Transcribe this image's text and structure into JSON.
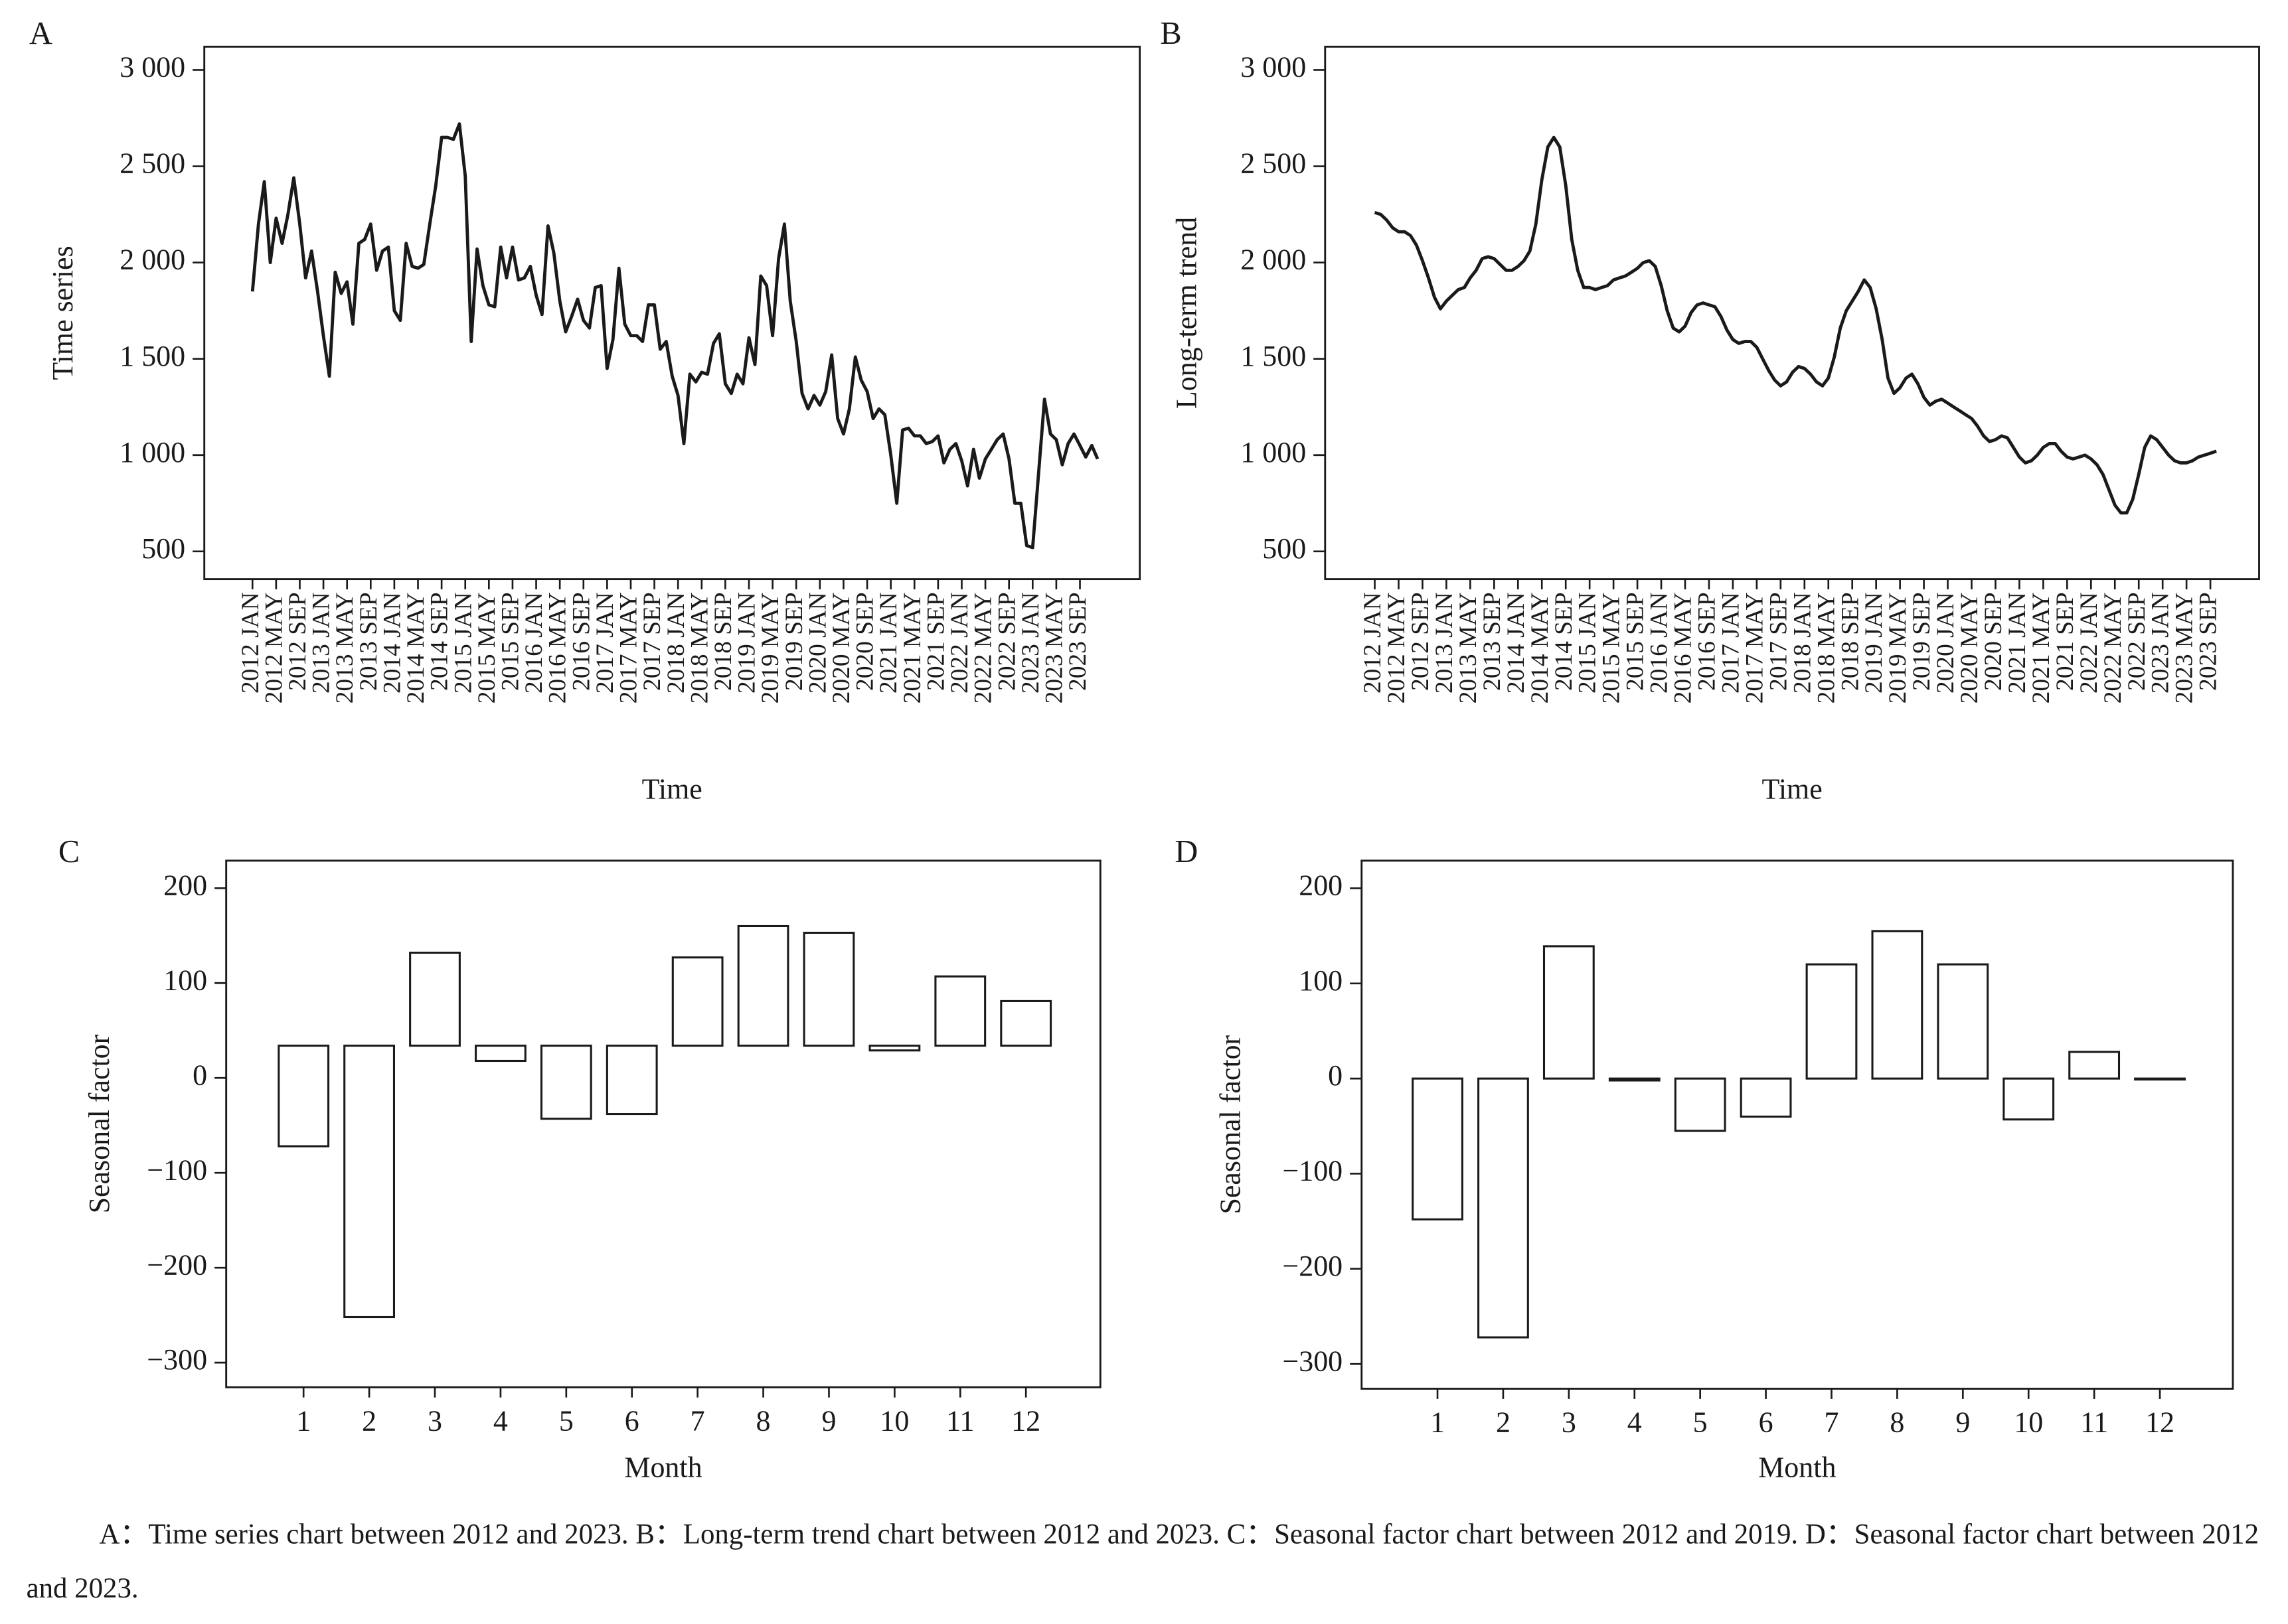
{
  "chart_data": [
    {
      "type": "line",
      "label": "A",
      "ylabel": "Time series",
      "xlabel": "Time",
      "color": "#1a1a1a",
      "categories": [
        "2012 JAN",
        null,
        null,
        null,
        "2012 MAY",
        null,
        null,
        null,
        "2012 SEP",
        null,
        null,
        null,
        "2013 JAN",
        null,
        null,
        null,
        "2013 MAY",
        null,
        null,
        null,
        "2013 SEP",
        null,
        null,
        null,
        "2014 JAN",
        null,
        null,
        null,
        "2014 MAY",
        null,
        null,
        null,
        "2014 SEP",
        null,
        null,
        null,
        "2015 JAN",
        null,
        null,
        null,
        "2015 MAY",
        null,
        null,
        null,
        "2015 SEP",
        null,
        null,
        null,
        "2016 JAN",
        null,
        null,
        null,
        "2016 MAY",
        null,
        null,
        null,
        "2016 SEP",
        null,
        null,
        null,
        "2017 JAN",
        null,
        null,
        null,
        "2017 MAY",
        null,
        null,
        null,
        "2017 SEP",
        null,
        null,
        null,
        "2018 JAN",
        null,
        null,
        null,
        "2018 MAY",
        null,
        null,
        null,
        "2018 SEP",
        null,
        null,
        null,
        "2019 JAN",
        null,
        null,
        null,
        "2019 MAY",
        null,
        null,
        null,
        "2019 SEP",
        null,
        null,
        null,
        "2020 JAN",
        null,
        null,
        null,
        "2020 MAY",
        null,
        null,
        null,
        "2020 SEP",
        null,
        null,
        null,
        "2021 JAN",
        null,
        null,
        null,
        "2021 MAY",
        null,
        null,
        null,
        "2021 SEP",
        null,
        null,
        null,
        "2022 JAN",
        null,
        null,
        null,
        "2022 MAY",
        null,
        null,
        null,
        "2022 SEP",
        null,
        null,
        null,
        "2023 JAN",
        null,
        null,
        null,
        "2023 MAY",
        null,
        null,
        null,
        "2023 SEP",
        null,
        null,
        null
      ],
      "values": [
        1850,
        2200,
        2420,
        2000,
        2230,
        2100,
        2250,
        2440,
        2200,
        1920,
        2060,
        1850,
        1620,
        1410,
        1950,
        1840,
        1900,
        1680,
        2100,
        2120,
        2200,
        1960,
        2060,
        2080,
        1750,
        1700,
        2100,
        1980,
        1970,
        1990,
        2200,
        2400,
        2650,
        2650,
        2640,
        2720,
        2450,
        1590,
        2070,
        1880,
        1780,
        1770,
        2080,
        1920,
        2080,
        1910,
        1920,
        1980,
        1830,
        1730,
        2190,
        2050,
        1800,
        1640,
        1720,
        1810,
        1700,
        1660,
        1870,
        1880,
        1450,
        1600,
        1970,
        1680,
        1620,
        1620,
        1590,
        1780,
        1780,
        1550,
        1590,
        1410,
        1310,
        1060,
        1420,
        1380,
        1430,
        1420,
        1580,
        1630,
        1370,
        1320,
        1420,
        1370,
        1610,
        1470,
        1930,
        1880,
        1620,
        2020,
        2200,
        1800,
        1590,
        1320,
        1240,
        1310,
        1260,
        1330,
        1520,
        1190,
        1110,
        1240,
        1510,
        1390,
        1330,
        1190,
        1240,
        1210,
        1000,
        750,
        1130,
        1140,
        1100,
        1100,
        1060,
        1070,
        1100,
        960,
        1030,
        1060,
        970,
        840,
        1030,
        880,
        980,
        1030,
        1080,
        1110,
        980,
        750,
        750,
        530,
        520,
        900,
        1290,
        1110,
        1080,
        950,
        1060,
        1110,
        1050,
        990,
        1050,
        980
      ],
      "ylim": [
        356,
        3121
      ],
      "yticks": [
        500,
        {
          "value": 1000,
          "label": "1 000"
        },
        {
          "value": 1500,
          "label": "1 500"
        },
        {
          "value": 2000,
          "label": "2 000"
        },
        {
          "value": 2500,
          "label": "2 500"
        },
        {
          "value": 3000,
          "label": "3 000"
        }
      ]
    },
    {
      "type": "line",
      "label": "B",
      "ylabel": "Long-term trend",
      "xlabel": "Time",
      "color": "#1a1a1a",
      "categories": [
        "2012 JAN",
        null,
        null,
        null,
        "2012 MAY",
        null,
        null,
        null,
        "2012 SEP",
        null,
        null,
        null,
        "2013 JAN",
        null,
        null,
        null,
        "2013 MAY",
        null,
        null,
        null,
        "2013 SEP",
        null,
        null,
        null,
        "2014 JAN",
        null,
        null,
        null,
        "2014 MAY",
        null,
        null,
        null,
        "2014 SEP",
        null,
        null,
        null,
        "2015 JAN",
        null,
        null,
        null,
        "2015 MAY",
        null,
        null,
        null,
        "2015 SEP",
        null,
        null,
        null,
        "2016 JAN",
        null,
        null,
        null,
        "2016 MAY",
        null,
        null,
        null,
        "2016 SEP",
        null,
        null,
        null,
        "2017 JAN",
        null,
        null,
        null,
        "2017 MAY",
        null,
        null,
        null,
        "2017 SEP",
        null,
        null,
        null,
        "2018 JAN",
        null,
        null,
        null,
        "2018 MAY",
        null,
        null,
        null,
        "2018 SEP",
        null,
        null,
        null,
        "2019 JAN",
        null,
        null,
        null,
        "2019 MAY",
        null,
        null,
        null,
        "2019 SEP",
        null,
        null,
        null,
        "2020 JAN",
        null,
        null,
        null,
        "2020 MAY",
        null,
        null,
        null,
        "2020 SEP",
        null,
        null,
        null,
        "2021 JAN",
        null,
        null,
        null,
        "2021 MAY",
        null,
        null,
        null,
        "2021 SEP",
        null,
        null,
        null,
        "2022 JAN",
        null,
        null,
        null,
        "2022 MAY",
        null,
        null,
        null,
        "2022 SEP",
        null,
        null,
        null,
        "2023 JAN",
        null,
        null,
        null,
        "2023 MAY",
        null,
        null,
        null,
        "2023 SEP",
        null
      ],
      "values": [
        2260,
        2250,
        2220,
        2180,
        2160,
        2160,
        2140,
        2090,
        2010,
        1920,
        1820,
        1760,
        1800,
        1830,
        1860,
        1870,
        1920,
        1960,
        2020,
        2030,
        2020,
        1990,
        1960,
        1960,
        1980,
        2010,
        2060,
        2200,
        2430,
        2600,
        2650,
        2600,
        2400,
        2120,
        1960,
        1870,
        1870,
        1860,
        1870,
        1880,
        1910,
        1920,
        1930,
        1950,
        1970,
        2000,
        2010,
        1980,
        1880,
        1750,
        1660,
        1640,
        1670,
        1740,
        1780,
        1790,
        1780,
        1770,
        1720,
        1650,
        1600,
        1580,
        1590,
        1590,
        1560,
        1500,
        1440,
        1390,
        1360,
        1380,
        1430,
        1460,
        1450,
        1420,
        1380,
        1360,
        1400,
        1510,
        1660,
        1750,
        1800,
        1850,
        1910,
        1870,
        1760,
        1600,
        1400,
        1320,
        1350,
        1400,
        1420,
        1370,
        1300,
        1260,
        1280,
        1290,
        1270,
        1250,
        1230,
        1210,
        1190,
        1150,
        1100,
        1070,
        1080,
        1100,
        1090,
        1040,
        990,
        960,
        970,
        1000,
        1040,
        1060,
        1060,
        1020,
        990,
        980,
        990,
        1000,
        980,
        950,
        900,
        820,
        740,
        700,
        700,
        770,
        900,
        1040,
        1100,
        1080,
        1040,
        1000,
        970,
        960,
        960,
        970,
        990,
        1000,
        1010,
        1020
      ],
      "ylim": [
        356,
        3121
      ],
      "yticks": [
        500,
        {
          "value": 1000,
          "label": "1 000"
        },
        {
          "value": 1500,
          "label": "1 500"
        },
        {
          "value": 2000,
          "label": "2 000"
        },
        {
          "value": 2500,
          "label": "2 500"
        },
        {
          "value": 3000,
          "label": "3 000"
        }
      ]
    },
    {
      "type": "bar",
      "label": "C",
      "ylabel": "Seasonal factor",
      "xlabel": "Month",
      "color": "#ffffff",
      "baseline": 34,
      "categories": [
        "1",
        "2",
        "3",
        "4",
        "5",
        "6",
        "7",
        "8",
        "9",
        "10",
        "11",
        "12"
      ],
      "values": [
        -72,
        -252,
        132,
        18,
        -43,
        -38,
        127,
        160,
        153,
        29,
        107,
        81
      ],
      "ylim": [
        -326,
        229
      ],
      "yticks": [
        {
          "value": -300,
          "label": "−300"
        },
        {
          "value": -200,
          "label": "−200"
        },
        {
          "value": -100,
          "label": "−100"
        },
        0,
        100,
        200
      ]
    },
    {
      "type": "bar",
      "label": "D",
      "ylabel": "Seasonal factor",
      "xlabel": "Month",
      "color": "#ffffff",
      "categories": [
        "1",
        "2",
        "3",
        "4",
        "5",
        "6",
        "7",
        "8",
        "9",
        "10",
        "11",
        "12"
      ],
      "values": [
        -148,
        -272,
        139,
        -2,
        -55,
        -40,
        120,
        155,
        120,
        -43,
        28,
        -1
      ],
      "ylim": [
        -326,
        229
      ],
      "yticks": [
        {
          "value": -300,
          "label": "−300"
        },
        {
          "value": -200,
          "label": "−200"
        },
        {
          "value": -100,
          "label": "−100"
        },
        0,
        100,
        200
      ]
    }
  ],
  "caption": "A：Time series chart between 2012 and 2023. B：Long-term trend chart between 2012 and 2023. C：Seasonal factor chart between 2012 and 2019. D：Seasonal factor chart between 2012 and 2023."
}
